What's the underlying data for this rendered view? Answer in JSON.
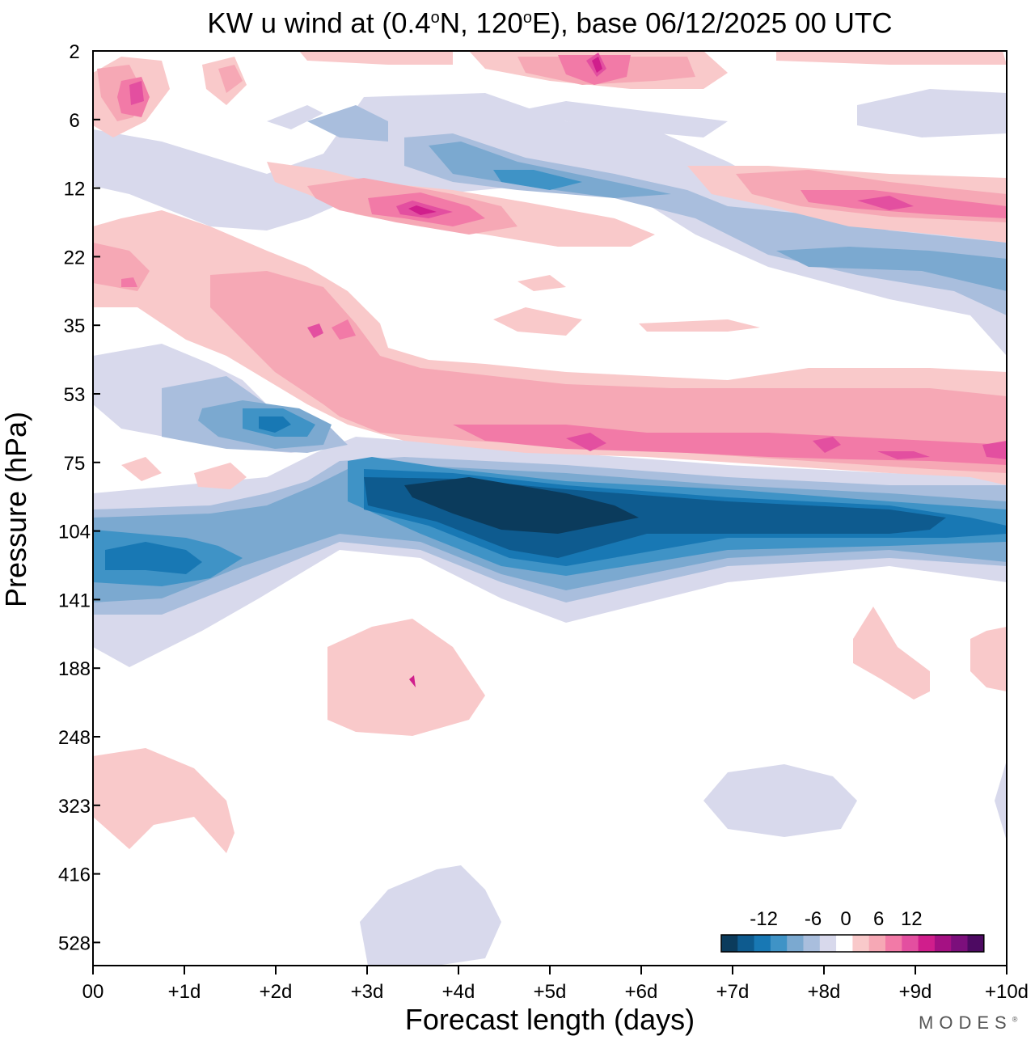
{
  "chart_data": {
    "type": "heatmap",
    "title_prefix": "KW u wind at (0.4",
    "title_deg1": "o",
    "title_mid": "N, 120",
    "title_deg2": "o",
    "title_suffix": "E),  base 06/12/2025  00 UTC",
    "xlabel": "Forecast length (days)",
    "ylabel": "Pressure (hPa)",
    "x_ticks": [
      "00",
      "+1d",
      "+2d",
      "+3d",
      "+4d",
      "+5d",
      "+6d",
      "+7d",
      "+8d",
      "+9d",
      "+10d"
    ],
    "xlim": [
      0,
      10
    ],
    "y_ticks": [
      "2",
      "6",
      "12",
      "22",
      "35",
      "53",
      "75",
      "104",
      "141",
      "188",
      "248",
      "323",
      "416",
      "528"
    ],
    "y_scale": "pressure levels, top = 2 hPa",
    "colorbar": {
      "labels": [
        "-12",
        "-6",
        "0",
        "6",
        "12"
      ],
      "label_slots": [
        2,
        5,
        7,
        9,
        11
      ],
      "colors": [
        "#0b3b5c",
        "#0e5b8f",
        "#1878b4",
        "#3f93c6",
        "#7ba9d0",
        "#a9bedd",
        "#d8d9ec",
        "#ffffff",
        "#f9c9ca",
        "#f6a8b5",
        "#f27aa7",
        "#e34fa0",
        "#d01e8c",
        "#a51183",
        "#7c0f7c",
        "#4d0a62"
      ]
    },
    "features": [
      {
        "name": "strong easterly jet near 90 hPa",
        "level": -14,
        "x_days": [
          3,
          10
        ]
      },
      {
        "name": "westerly band near 65 hPa",
        "level": 9,
        "x_days": [
          3,
          10
        ]
      },
      {
        "name": "easterly core near 110 hPa",
        "level": -10,
        "x_days": [
          0,
          1.5
        ]
      },
      {
        "name": "westerly cell near 15 hPa",
        "level": 9,
        "x_days": [
          3,
          4.5
        ]
      },
      {
        "name": "easterly band near 10 hPa",
        "level": -8,
        "x_days": [
          3.5,
          6
        ]
      }
    ]
  },
  "watermark": {
    "text": "MODES",
    "mark": "®"
  }
}
